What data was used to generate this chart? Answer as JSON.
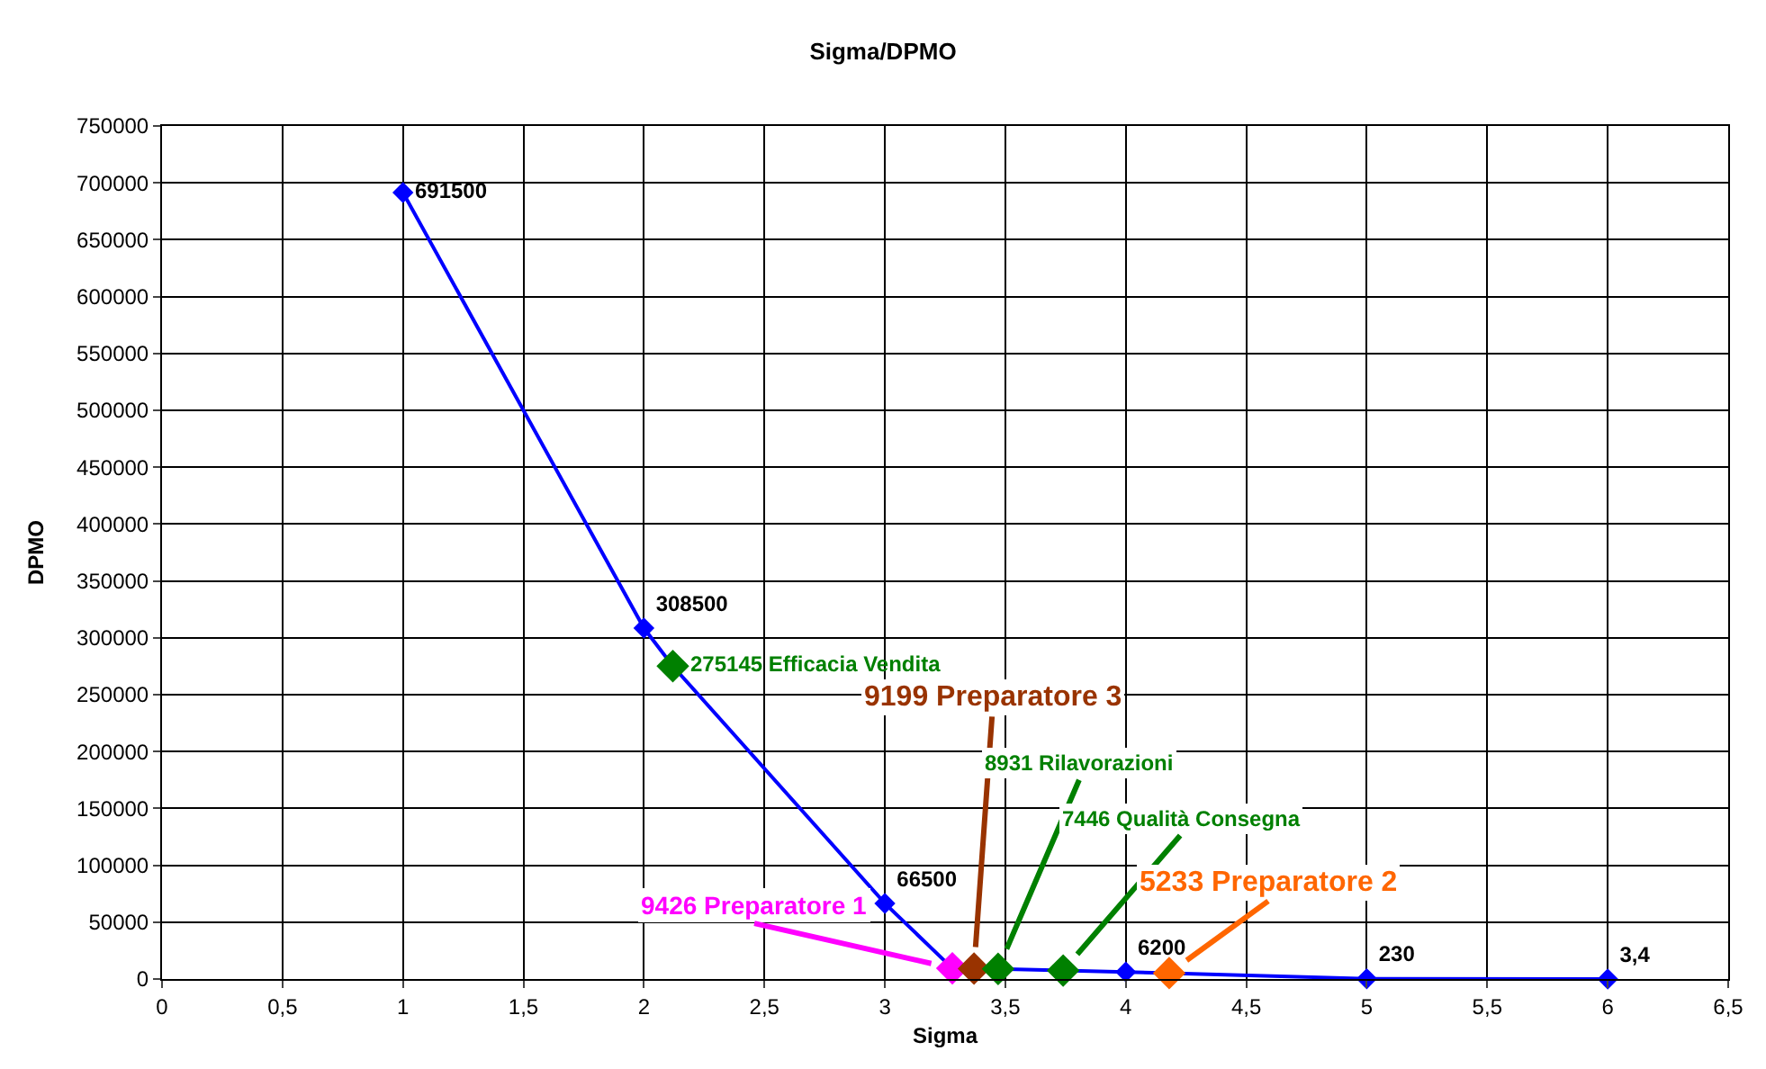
{
  "chart_data": {
    "type": "line",
    "title": "Sigma/DPMO",
    "xlabel": "Sigma",
    "ylabel": "DPMO",
    "xlim": [
      0,
      6.5
    ],
    "xticks": [
      0,
      {
        "value": 0.5,
        "label": "0,5"
      },
      1,
      {
        "value": 1.5,
        "label": "1,5"
      },
      2,
      {
        "value": 2.5,
        "label": "2,5"
      },
      3,
      {
        "value": 3.5,
        "label": "3,5"
      },
      4,
      {
        "value": 4.5,
        "label": "4,5"
      },
      5,
      {
        "value": 5.5,
        "label": "5,5"
      },
      6,
      {
        "value": 6.5,
        "label": "6,5"
      }
    ],
    "ylim": [
      0,
      750000
    ],
    "yticks": [
      0,
      50000,
      100000,
      150000,
      200000,
      250000,
      300000,
      350000,
      400000,
      450000,
      500000,
      550000,
      600000,
      650000,
      700000,
      750000
    ],
    "grid": true,
    "legend": false,
    "marker": "diamond",
    "line_style": "solid",
    "series": [
      {
        "color": "#0000ff",
        "x": [
          1,
          2,
          2.12,
          3,
          3.28,
          3.37,
          3.47,
          3.74,
          4,
          4.18,
          5,
          6
        ],
        "values": [
          691500,
          308500,
          275145,
          66500,
          9426,
          9199,
          8931,
          7446,
          6200,
          5233,
          230,
          3.4
        ],
        "colors": [
          "#0000ff",
          "#0000ff",
          "#008000",
          "#0000ff",
          "#ff00ff",
          "#993300",
          "#008000",
          "#008000",
          "#0000ff",
          "#ff6600",
          "#0000ff",
          "#0000ff"
        ],
        "value_labels": [
          "691500",
          "308500",
          "275145 Efficacia Vendita",
          "66500",
          null,
          null,
          null,
          null,
          "6200",
          null,
          "230",
          "3,4"
        ]
      }
    ],
    "annotations": [
      {
        "text": "9426 Preparatore 1",
        "x": 3.28,
        "y": 9426
      },
      {
        "text": "9199 Preparatore 3",
        "x": 3.37,
        "y": 9199
      },
      {
        "text": "8931 Rilavorazioni",
        "x": 3.47,
        "y": 8931
      },
      {
        "text": "7446 Qualità Consegna",
        "x": 3.74,
        "y": 7446
      },
      {
        "text": "5233 Preparatore 2",
        "x": 4.18,
        "y": 5233
      }
    ]
  }
}
